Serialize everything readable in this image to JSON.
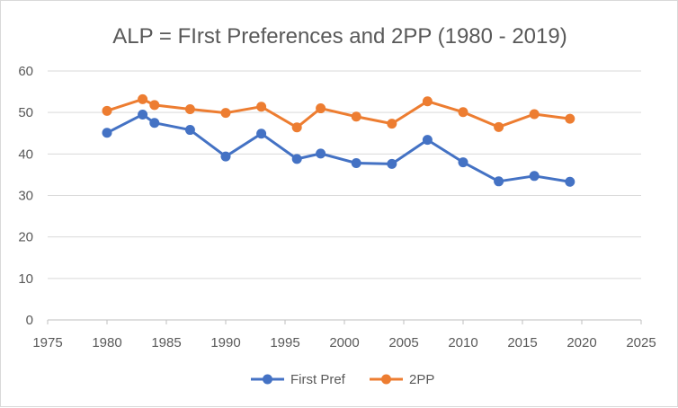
{
  "chart_data": {
    "type": "scatter",
    "title": "ALP = FIrst Preferences and 2PP (1980 - 2019)",
    "xlabel": "",
    "ylabel": "",
    "xlim": [
      1975,
      2025
    ],
    "ylim": [
      0,
      60
    ],
    "x_ticks": [
      "1975",
      "1980",
      "1985",
      "1990",
      "1995",
      "2000",
      "2005",
      "2010",
      "2015",
      "2020",
      "2025"
    ],
    "y_ticks": [
      "0",
      "10",
      "20",
      "30",
      "40",
      "50",
      "60"
    ],
    "grid": "horizontal",
    "legend_position": "bottom",
    "series": [
      {
        "name": "First Pref",
        "color": "#4472C4",
        "x": [
          1980,
          1983,
          1984,
          1987,
          1990,
          1993,
          1996,
          1998,
          2001,
          2004,
          2007,
          2010,
          2013,
          2016,
          2019
        ],
        "y": [
          45.1,
          49.5,
          47.5,
          45.8,
          39.4,
          44.9,
          38.8,
          40.1,
          37.8,
          37.6,
          43.4,
          38.0,
          33.4,
          34.7,
          33.3
        ]
      },
      {
        "name": "2PP",
        "color": "#ED7D31",
        "x": [
          1980,
          1983,
          1984,
          1987,
          1990,
          1993,
          1996,
          1998,
          2001,
          2004,
          2007,
          2010,
          2013,
          2016,
          2019
        ],
        "y": [
          50.4,
          53.2,
          51.8,
          50.8,
          49.9,
          51.4,
          46.4,
          51.0,
          49.0,
          47.3,
          52.7,
          50.1,
          46.5,
          49.6,
          48.5
        ]
      }
    ]
  }
}
